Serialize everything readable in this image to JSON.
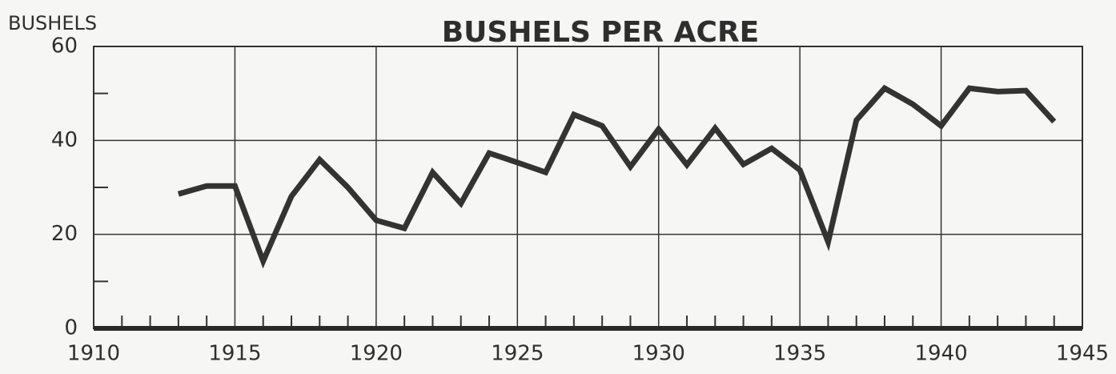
{
  "chart_data": {
    "type": "line",
    "title": "BUSHELS PER ACRE",
    "y_label": "BUSHELS",
    "x": [
      1913,
      1914,
      1915,
      1916,
      1917,
      1918,
      1919,
      1920,
      1921,
      1922,
      1923,
      1924,
      1925,
      1926,
      1927,
      1928,
      1929,
      1930,
      1931,
      1932,
      1933,
      1934,
      1935,
      1936,
      1937,
      1938,
      1939,
      1940,
      1941,
      1942,
      1943,
      1944
    ],
    "series": [
      {
        "name": "Bushels per acre",
        "color": "#333333",
        "values": [
          28.6,
          30.3,
          30.3,
          14.3,
          28.1,
          35.9,
          30,
          23,
          21.3,
          33.2,
          26.6,
          37.3,
          35.3,
          33.2,
          45.5,
          43.1,
          34.4,
          42.4,
          34.8,
          42.6,
          34.9,
          38.3,
          33.7,
          18.4,
          44.3,
          51.1,
          47.7,
          43.1,
          51.1,
          50.4,
          50.6,
          44
        ]
      }
    ],
    "xlim": [
      1910,
      1945
    ],
    "xticks": [
      1910,
      1915,
      1920,
      1925,
      1930,
      1935,
      1940,
      1945
    ],
    "xminor_ticks": [
      1911,
      1912,
      1913,
      1914,
      1916,
      1917,
      1918,
      1919,
      1921,
      1922,
      1923,
      1924,
      1926,
      1927,
      1928,
      1929,
      1931,
      1932,
      1933,
      1934,
      1936,
      1937,
      1938,
      1939,
      1941,
      1942,
      1943,
      1944
    ],
    "ylim": [
      0,
      60
    ],
    "yticks": [
      0,
      20,
      40,
      60
    ],
    "yminor_ticks": [
      10,
      30,
      50
    ],
    "grid": true
  }
}
